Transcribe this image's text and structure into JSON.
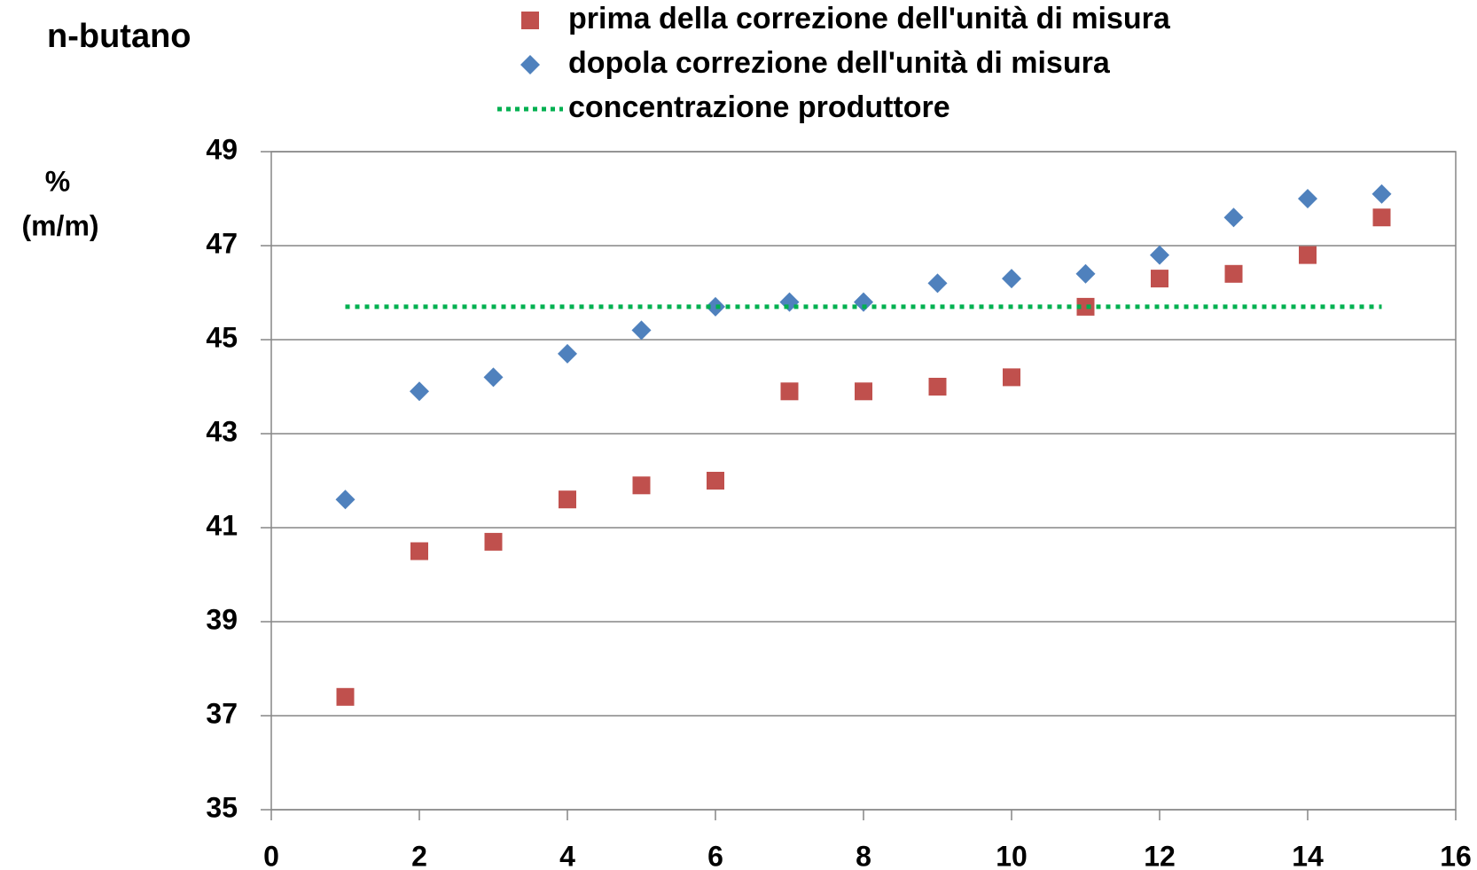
{
  "chart_data": {
    "type": "scatter",
    "title": "n-butano",
    "y_label": [
      "%",
      "(m/m)"
    ],
    "xlim": [
      0,
      16
    ],
    "xticks": [
      0,
      2,
      4,
      6,
      8,
      10,
      12,
      14,
      16
    ],
    "ylim": [
      35,
      49
    ],
    "yticks": [
      35,
      37,
      39,
      41,
      43,
      45,
      47,
      49
    ],
    "grid": true,
    "legend": "top",
    "series": [
      {
        "name": "prima della correzione dell'unità di misura",
        "color": "#c0504d",
        "marker": "square",
        "x": [
          1,
          2,
          3,
          4,
          5,
          6,
          7,
          8,
          9,
          10,
          11,
          12,
          13,
          14,
          15
        ],
        "values": [
          37.4,
          40.5,
          40.7,
          41.6,
          41.9,
          42.0,
          43.9,
          43.9,
          44.0,
          44.2,
          45.7,
          46.3,
          46.4,
          46.8,
          47.6
        ]
      },
      {
        "name": "dopola correzione dell'unità di misura",
        "color": "#4f81bd",
        "marker": "diamond",
        "x": [
          1,
          2,
          3,
          4,
          5,
          6,
          7,
          8,
          9,
          10,
          11,
          12,
          13,
          14,
          15
        ],
        "values": [
          41.6,
          43.9,
          44.2,
          44.7,
          45.2,
          45.7,
          45.8,
          45.8,
          46.2,
          46.3,
          46.4,
          46.8,
          47.6,
          48.0,
          48.1
        ]
      },
      {
        "name": "concentrazione produttore",
        "color": "#00b050",
        "marker": "dotted-line",
        "x": [
          1,
          15
        ],
        "values": [
          45.7,
          45.7
        ]
      }
    ]
  }
}
